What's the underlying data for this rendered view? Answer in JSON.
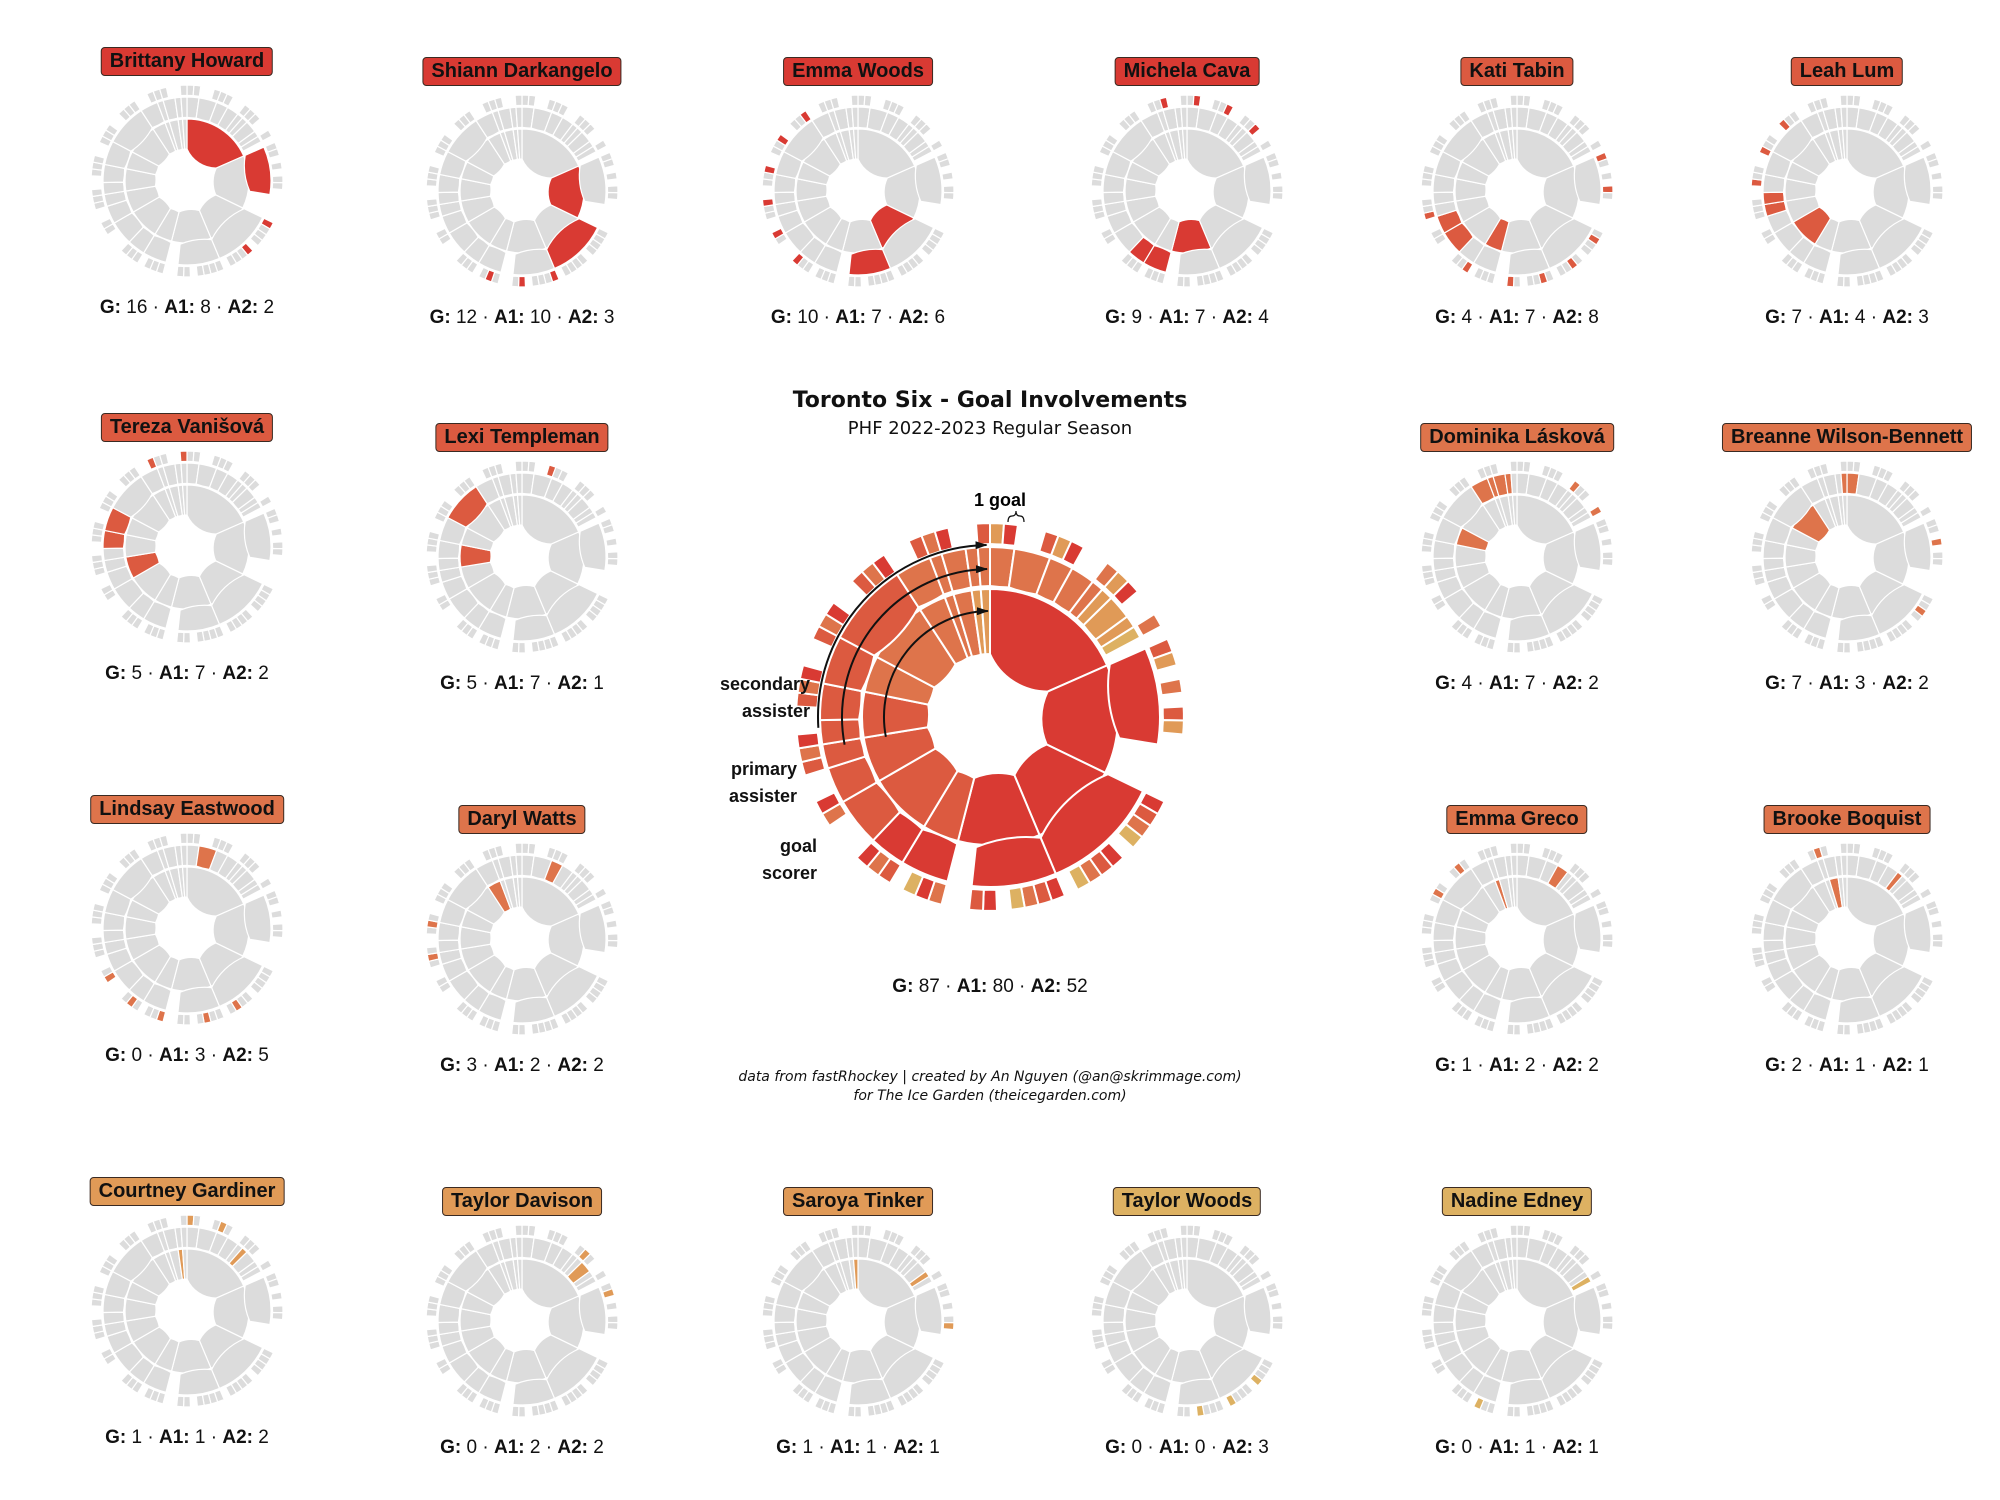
{
  "title": "Toronto Six - Goal Involvements",
  "subtitle": "PHF 2022-2023 Regular Season",
  "credit_line1": "data from fastRhockey | created by An Nguyen (@an@skrimmage.com)",
  "credit_line2": "for The Ice Garden (theicegarden.com)",
  "legend": {
    "one_goal": "1 goal",
    "secondary_line1": "secondary",
    "secondary_line2": "assister",
    "primary_line1": "primary",
    "primary_line2": "assister",
    "scorer_line1": "goal",
    "scorer_line2": "scorer"
  },
  "stat_labels": {
    "g": "G:",
    "a1": "A1:",
    "a2": "A2:",
    "sep": "·"
  },
  "team_totals": {
    "g": 87,
    "a1": 80,
    "a2": 52
  },
  "colors": {
    "inactive": "#dcdcdc",
    "tiers": [
      "#d93a33",
      "#dc5a40",
      "#de744b",
      "#e09a57",
      "#ddb162"
    ]
  },
  "chart_data": {
    "type": "sunburst",
    "title": "Toronto Six - Goal Involvements",
    "levels": [
      "goal scorer",
      "primary assister",
      "secondary assister"
    ],
    "unit": "1 goal",
    "total_goals": 87,
    "players": [
      {
        "name": "Brittany Howard",
        "g": 16,
        "a1": 8,
        "a2": 2,
        "tier": 0
      },
      {
        "name": "Shiann Darkangelo",
        "g": 12,
        "a1": 10,
        "a2": 3,
        "tier": 0
      },
      {
        "name": "Emma Woods",
        "g": 10,
        "a1": 7,
        "a2": 6,
        "tier": 0
      },
      {
        "name": "Michela Cava",
        "g": 9,
        "a1": 7,
        "a2": 4,
        "tier": 0
      },
      {
        "name": "Kati Tabin",
        "g": 4,
        "a1": 7,
        "a2": 8,
        "tier": 1
      },
      {
        "name": "Leah Lum",
        "g": 7,
        "a1": 4,
        "a2": 3,
        "tier": 1
      },
      {
        "name": "Tereza Vanišová",
        "g": 5,
        "a1": 7,
        "a2": 2,
        "tier": 1
      },
      {
        "name": "Lexi Templeman",
        "g": 5,
        "a1": 7,
        "a2": 1,
        "tier": 1
      },
      {
        "name": "Dominika Lásková",
        "g": 4,
        "a1": 7,
        "a2": 2,
        "tier": 2
      },
      {
        "name": "Breanne Wilson-Bennett",
        "g": 7,
        "a1": 3,
        "a2": 2,
        "tier": 2
      },
      {
        "name": "Lindsay Eastwood",
        "g": 0,
        "a1": 3,
        "a2": 5,
        "tier": 2
      },
      {
        "name": "Daryl Watts",
        "g": 3,
        "a1": 2,
        "a2": 2,
        "tier": 2
      },
      {
        "name": "Emma Greco",
        "g": 1,
        "a1": 2,
        "a2": 2,
        "tier": 2
      },
      {
        "name": "Brooke Boquist",
        "g": 2,
        "a1": 1,
        "a2": 1,
        "tier": 2
      },
      {
        "name": "Courtney Gardiner",
        "g": 1,
        "a1": 1,
        "a2": 2,
        "tier": 3
      },
      {
        "name": "Taylor Davison",
        "g": 0,
        "a1": 2,
        "a2": 2,
        "tier": 3
      },
      {
        "name": "Saroya Tinker",
        "g": 1,
        "a1": 1,
        "a2": 1,
        "tier": 3
      },
      {
        "name": "Taylor Woods",
        "g": 0,
        "a1": 0,
        "a2": 3,
        "tier": 4
      },
      {
        "name": "Nadine Edney",
        "g": 0,
        "a1": 1,
        "a2": 1,
        "tier": 4
      }
    ]
  }
}
